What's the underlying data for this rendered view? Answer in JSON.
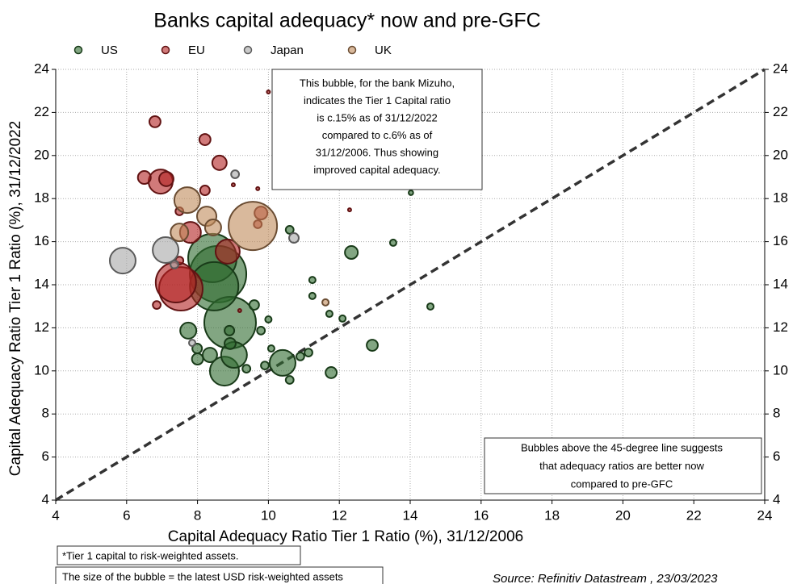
{
  "chart_data": {
    "type": "scatter",
    "title": "Banks capital adequacy* now and pre-GFC",
    "xlabel": "Capital Adequacy Ratio Tier 1 Ratio (%), 31/12/2006",
    "ylabel": "Capital Adequacy Ratio Tier 1 Ratio (%), 31/12/2022",
    "xlim": [
      4,
      24
    ],
    "ylim": [
      4,
      24
    ],
    "xticks": [
      4,
      6,
      8,
      10,
      12,
      14,
      16,
      18,
      20,
      22,
      24
    ],
    "yticks": [
      4,
      6,
      8,
      10,
      12,
      14,
      16,
      18,
      20,
      22,
      24
    ],
    "grid": true,
    "series": [
      {
        "name": "US",
        "color": "#2e6b2e",
        "x": [
          8.58,
          8.42,
          8.92,
          8.47,
          8.76,
          9.03,
          10.4,
          7.74,
          8.35,
          8.0,
          7.99,
          8.9,
          8.92,
          9.6,
          9.79,
          10.0,
          9.38,
          9.9,
          10.08,
          10.9,
          11.13,
          10.6,
          10.6,
          11.24,
          11.24,
          11.72,
          12.09,
          12.34,
          11.77,
          12.93,
          13.52,
          14.57,
          14.02
        ],
        "values": [
          14.49,
          15.24,
          12.24,
          13.93,
          9.99,
          10.74,
          10.37,
          11.87,
          10.74,
          10.55,
          11.04,
          11.87,
          11.27,
          13.06,
          11.87,
          12.39,
          10.1,
          10.25,
          11.04,
          10.67,
          10.85,
          9.58,
          16.55,
          14.22,
          13.48,
          12.65,
          12.43,
          15.5,
          9.92,
          11.19,
          15.95,
          12.99,
          18.27
        ],
        "sizes": [
          306,
          225,
          256,
          225,
          81,
          64,
          64,
          25,
          20,
          12,
          9,
          9,
          12,
          9,
          6,
          4,
          6,
          6,
          4,
          6,
          6,
          6,
          6,
          4,
          4,
          4,
          4,
          16,
          12,
          12,
          4,
          4,
          2
        ]
      },
      {
        "name": "EU",
        "color": "#b22222",
        "x": [
          7.53,
          7.39,
          7.8,
          8.85,
          6.96,
          7.12,
          6.5,
          6.8,
          8.21,
          8.62,
          8.21,
          9.79,
          9.7,
          6.85,
          7.49,
          9.01,
          9.7,
          10.0,
          12.29,
          9.19,
          7.49
        ],
        "values": [
          13.81,
          14.11,
          16.43,
          15.54,
          18.79,
          18.91,
          18.98,
          21.57,
          20.74,
          19.66,
          18.38,
          17.33,
          16.81,
          13.06,
          15.12,
          18.64,
          18.46,
          22.95,
          17.48,
          12.8,
          17.41
        ],
        "sizes": [
          182,
          156,
          42,
          56,
          56,
          20,
          16,
          12,
          12,
          20,
          9,
          16,
          6,
          6,
          6,
          1,
          1,
          1,
          1,
          1,
          6
        ]
      },
      {
        "name": "Japan",
        "color": "#a6a6a6",
        "x": [
          5.89,
          7.1,
          9.06,
          10.72,
          7.85,
          7.35
        ],
        "values": [
          15.12,
          15.61,
          19.13,
          16.17,
          11.3,
          14.94
        ],
        "sizes": [
          64,
          64,
          6,
          9,
          4,
          6
        ]
      },
      {
        "name": "UK",
        "color": "#c08a5a",
        "x": [
          7.71,
          9.56,
          8.26,
          8.44,
          7.49,
          11.61
        ],
        "values": [
          17.93,
          16.73,
          17.18,
          16.66,
          16.43,
          13.18
        ],
        "sizes": [
          64,
          225,
          36,
          25,
          30,
          4
        ]
      }
    ],
    "annotations": [
      [
        "This bubble, for the bank Mizuho,",
        "indicates the Tier 1 Capital ratio",
        "is c.15% as of 31/12/2022",
        "compared to c.6% as of",
        "31/12/2006. Thus showing",
        "improved capital adequacy."
      ],
      [
        "Bubbles above the 45-degree line suggests",
        "that adequacy ratios are better now",
        "compared to pre-GFC"
      ]
    ],
    "footnotes": [
      "*Tier 1 capital to risk-weighted assets.",
      "The size of the bubble =  the latest USD risk-weighted assets"
    ],
    "source": "Source: Refinitiv Datastream , 23/03/2023"
  }
}
